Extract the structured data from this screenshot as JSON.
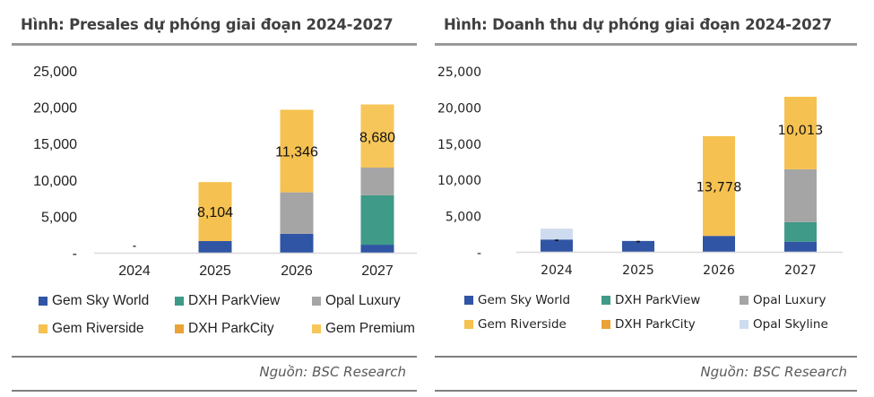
{
  "chart_data": [
    {
      "type": "bar",
      "stacked": true,
      "title": "Hình: Presales dự phóng giai đoạn 2024-2027",
      "xlabel": "",
      "ylabel": "",
      "categories": [
        "2024",
        "2025",
        "2026",
        "2027"
      ],
      "ylim": [
        0,
        25000
      ],
      "yticks": [
        0,
        5000,
        10000,
        15000,
        20000,
        25000
      ],
      "ytick_labels": [
        "-",
        "5,000",
        "10,000",
        "15,000",
        "20,000",
        "25,000"
      ],
      "grid": false,
      "legend_position": "bottom",
      "series": [
        {
          "name": "Gem Sky World",
          "color": "#2f55a4",
          "values": [
            0,
            1600,
            2600,
            1100
          ]
        },
        {
          "name": "DXH ParkView",
          "color": "#3f9a87",
          "values": [
            0,
            0,
            0,
            6800
          ]
        },
        {
          "name": "Opal Luxury",
          "color": "#a5a5a5",
          "values": [
            0,
            0,
            5700,
            3800
          ]
        },
        {
          "name": "Gem Riverside",
          "color": "#f5c150",
          "values": [
            0,
            8104,
            11346,
            0
          ]
        },
        {
          "name": "DXH ParkCity",
          "color": "#eba237",
          "values": [
            0,
            0,
            0,
            0
          ]
        },
        {
          "name": "Gem Premium",
          "color": "#f7c65a",
          "values": [
            0,
            0,
            0,
            8680
          ]
        }
      ],
      "data_labels": [
        {
          "category": "2024",
          "series": "Gem Sky World",
          "text": "-"
        },
        {
          "category": "2025",
          "series": "Gem Riverside",
          "text": "8,104"
        },
        {
          "category": "2026",
          "series": "Gem Riverside",
          "text": "11,346"
        },
        {
          "category": "2027",
          "series": "Gem Premium",
          "text": "8,680"
        }
      ],
      "source": "Nguồn: BSC Research"
    },
    {
      "type": "bar",
      "stacked": true,
      "title": "Hình: Doanh thu dự phóng giai đoạn 2024-2027",
      "xlabel": "",
      "ylabel": "",
      "categories": [
        "2024",
        "2025",
        "2026",
        "2027"
      ],
      "ylim": [
        0,
        25000
      ],
      "yticks": [
        0,
        5000,
        10000,
        15000,
        20000,
        25000
      ],
      "ytick_labels": [
        "-",
        "5,000",
        "10,000",
        "15,000",
        "20,000",
        "25,000"
      ],
      "grid": false,
      "legend_position": "bottom",
      "series": [
        {
          "name": "Gem Sky World",
          "color": "#2f55a4",
          "values": [
            1700,
            1500,
            2200,
            1400
          ]
        },
        {
          "name": "DXH ParkView",
          "color": "#3f9a87",
          "values": [
            0,
            0,
            0,
            2700
          ]
        },
        {
          "name": "Opal Luxury",
          "color": "#a5a5a5",
          "values": [
            0,
            0,
            0,
            7300
          ]
        },
        {
          "name": "Gem Riverside",
          "color": "#f5c150",
          "values": [
            0,
            0,
            13778,
            10013
          ]
        },
        {
          "name": "DXH ParkCity",
          "color": "#eba237",
          "values": [
            0,
            0,
            0,
            0
          ]
        },
        {
          "name": "Opal Skyline",
          "color": "#cfdcf0",
          "values": [
            1500,
            0,
            0,
            0
          ]
        }
      ],
      "data_labels": [
        {
          "category": "2024",
          "series": "Gem Riverside",
          "text": "-"
        },
        {
          "category": "2025",
          "series": "Gem Riverside",
          "text": "-"
        },
        {
          "category": "2026",
          "series": "Gem Riverside",
          "text": "13,778"
        },
        {
          "category": "2027",
          "series": "Gem Riverside",
          "text": "10,013"
        }
      ],
      "source": "Nguồn: BSC Research"
    }
  ]
}
